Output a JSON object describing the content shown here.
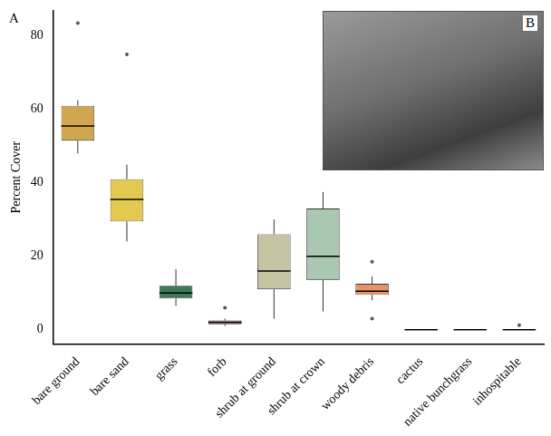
{
  "chart_data": {
    "type": "boxplot",
    "panel_labels": [
      "A",
      "B"
    ],
    "y_label": "Percent Cover",
    "categories": [
      "bare ground",
      "bare sand",
      "grass",
      "forb",
      "shrub at ground",
      "shrub at crown",
      "woody debris",
      "cactus",
      "native bunchgrass",
      "inhospitable"
    ],
    "min": [
      48,
      24,
      6.5,
      1,
      3,
      5,
      8,
      0,
      0,
      0
    ],
    "q1": [
      51.5,
      29.5,
      8.5,
      1.5,
      11,
      13.5,
      9.5,
      0,
      0,
      0
    ],
    "median": [
      55.5,
      35.5,
      10,
      2,
      16,
      20,
      10.5,
      0,
      0,
      0
    ],
    "q3": [
      61,
      41,
      12,
      2.5,
      26,
      33,
      12.5,
      0,
      0,
      0
    ],
    "max": [
      62.5,
      45,
      16.5,
      3,
      30,
      37.5,
      14.5,
      0,
      0,
      0
    ],
    "outliers": [
      [
        83.5
      ],
      [
        75
      ],
      [],
      [
        6
      ],
      [],
      [],
      [
        18.5,
        3
      ],
      [],
      [],
      [
        1.2
      ]
    ],
    "colors": [
      "#d1a650",
      "#e3c94f",
      "#3e7a56",
      "#e9b7b6",
      "#c5c3a1",
      "#a9c7b1",
      "#e8946a",
      "#8c8c8c",
      "#8c8c8c",
      "#8c8c8c"
    ],
    "ylim": [
      -4,
      87
    ],
    "yticks": [
      0,
      20,
      40,
      60,
      80
    ],
    "grid": false
  }
}
